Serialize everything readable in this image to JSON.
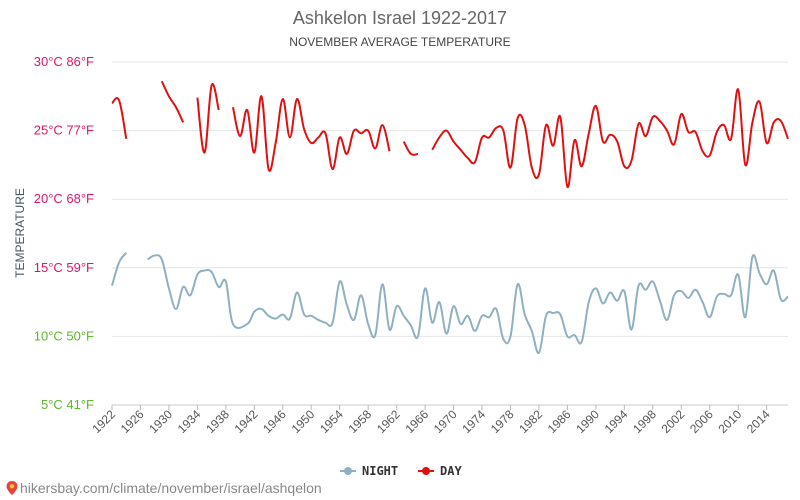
{
  "chart_data": {
    "type": "line",
    "title": "Ashkelon Israel 1922-2017",
    "subtitle": "NOVEMBER AVERAGE TEMPERATURE",
    "ylabel": "TEMPERATURE",
    "ylim": [
      5,
      30
    ],
    "xlim": [
      1922,
      2017
    ],
    "yticks": [
      {
        "value": 30,
        "label": "30°C 86°F",
        "color": "#e0156b"
      },
      {
        "value": 25,
        "label": "25°C 77°F",
        "color": "#e0156b"
      },
      {
        "value": 20,
        "label": "20°C 68°F",
        "color": "#e0156b"
      },
      {
        "value": 15,
        "label": "15°C 59°F",
        "color": "#e0156b"
      },
      {
        "value": 10,
        "label": "10°C 50°F",
        "color": "#5cb82e"
      },
      {
        "value": 5,
        "label": "5°C 41°F",
        "color": "#5cb82e"
      }
    ],
    "xticks": [
      1922,
      1926,
      1930,
      1934,
      1938,
      1942,
      1946,
      1950,
      1954,
      1958,
      1962,
      1966,
      1970,
      1974,
      1978,
      1982,
      1986,
      1990,
      1994,
      1998,
      2002,
      2006,
      2010,
      2014
    ],
    "grid": true,
    "legend_position": "bottom",
    "series": [
      {
        "name": "NIGHT",
        "color": "#8fb0c0",
        "x": [
          1922,
          1923,
          1924,
          1925,
          1927,
          1928,
          1929,
          1930,
          1931,
          1932,
          1933,
          1934,
          1935,
          1936,
          1937,
          1938,
          1939,
          1941,
          1942,
          1943,
          1944,
          1945,
          1946,
          1947,
          1948,
          1949,
          1950,
          1951,
          1952,
          1953,
          1954,
          1955,
          1956,
          1957,
          1958,
          1959,
          1960,
          1961,
          1962,
          1963,
          1964,
          1965,
          1966,
          1967,
          1968,
          1969,
          1970,
          1971,
          1972,
          1973,
          1974,
          1975,
          1976,
          1977,
          1978,
          1979,
          1980,
          1981,
          1982,
          1983,
          1984,
          1985,
          1986,
          1987,
          1988,
          1989,
          1990,
          1991,
          1992,
          1993,
          1994,
          1995,
          1996,
          1997,
          1998,
          1999,
          2000,
          2001,
          2002,
          2003,
          2004,
          2005,
          2006,
          2007,
          2008,
          2009,
          2010,
          2011,
          2012,
          2013,
          2014,
          2015,
          2016,
          2017
        ],
        "values": [
          13.7,
          15.4,
          16.1,
          null,
          15.6,
          15.9,
          15.6,
          13.5,
          12.0,
          13.6,
          13.0,
          14.5,
          14.8,
          14.7,
          13.6,
          14.0,
          10.9,
          10.9,
          11.8,
          12.0,
          11.5,
          11.3,
          11.6,
          11.3,
          13.2,
          11.6,
          11.5,
          11.2,
          11.0,
          11.0,
          14.0,
          12.3,
          11.2,
          13.0,
          10.9,
          10.1,
          13.8,
          10.5,
          12.2,
          11.5,
          10.8,
          10.0,
          13.5,
          11.0,
          12.5,
          10.2,
          12.2,
          10.9,
          11.5,
          10.4,
          11.5,
          11.4,
          12.0,
          9.8,
          10.0,
          13.8,
          11.6,
          10.4,
          8.8,
          11.5,
          11.7,
          11.6,
          10.0,
          10.1,
          9.6,
          12.5,
          13.5,
          12.4,
          13.2,
          12.6,
          13.3,
          10.5,
          13.7,
          13.4,
          14.0,
          12.6,
          11.2,
          13.0,
          13.3,
          12.8,
          13.4,
          12.5,
          11.4,
          12.9,
          13.1,
          13.0,
          14.5,
          11.4,
          15.8,
          14.6,
          13.8,
          14.8,
          12.7,
          12.9
        ]
      },
      {
        "name": "DAY",
        "color": "#e01010",
        "x": [
          1922,
          1923,
          1924,
          1925,
          1927,
          1928,
          1929,
          1930,
          1931,
          1932,
          1933,
          1934,
          1935,
          1936,
          1937,
          1938,
          1939,
          1940,
          1941,
          1942,
          1943,
          1944,
          1945,
          1946,
          1947,
          1948,
          1949,
          1950,
          1951,
          1952,
          1953,
          1954,
          1955,
          1956,
          1957,
          1958,
          1959,
          1960,
          1961,
          1962,
          1963,
          1964,
          1965,
          1966,
          1967,
          1968,
          1969,
          1970,
          1971,
          1972,
          1973,
          1974,
          1975,
          1976,
          1977,
          1978,
          1979,
          1980,
          1981,
          1982,
          1983,
          1984,
          1985,
          1986,
          1987,
          1988,
          1989,
          1990,
          1991,
          1992,
          1993,
          1994,
          1995,
          1996,
          1997,
          1998,
          1999,
          2000,
          2001,
          2002,
          2003,
          2004,
          2005,
          2006,
          2007,
          2008,
          2009,
          2010,
          2011,
          2012,
          2013,
          2014,
          2015,
          2016,
          2017
        ],
        "values": [
          27.0,
          27.2,
          24.4,
          null,
          26.8,
          null,
          28.6,
          27.5,
          26.7,
          25.6,
          null,
          27.4,
          23.4,
          28.3,
          26.5,
          null,
          26.7,
          24.6,
          26.5,
          23.4,
          27.5,
          22.2,
          24.1,
          27.3,
          24.5,
          27.3,
          25.1,
          24.1,
          24.5,
          24.8,
          22.2,
          24.5,
          23.3,
          25.0,
          24.8,
          25.0,
          23.7,
          25.4,
          23.5,
          null,
          24.2,
          23.3,
          23.3,
          null,
          23.6,
          24.5,
          25.0,
          24.2,
          23.6,
          23.0,
          22.7,
          24.5,
          24.5,
          25.2,
          25.0,
          22.3,
          25.9,
          25.4,
          22.3,
          21.8,
          25.4,
          23.9,
          26.0,
          20.9,
          24.3,
          22.4,
          24.8,
          26.8,
          24.2,
          24.7,
          24.2,
          22.4,
          22.8,
          25.5,
          24.6,
          26.0,
          25.7,
          25.0,
          24.0,
          26.2,
          24.9,
          24.9,
          23.5,
          23.2,
          24.9,
          25.4,
          24.4,
          28.0,
          22.5,
          25.6,
          27.1,
          24.1,
          25.6,
          25.7,
          24.4
        ]
      }
    ]
  },
  "source": {
    "text": "hikersbay.com/climate/november/israel/ashqelon"
  }
}
